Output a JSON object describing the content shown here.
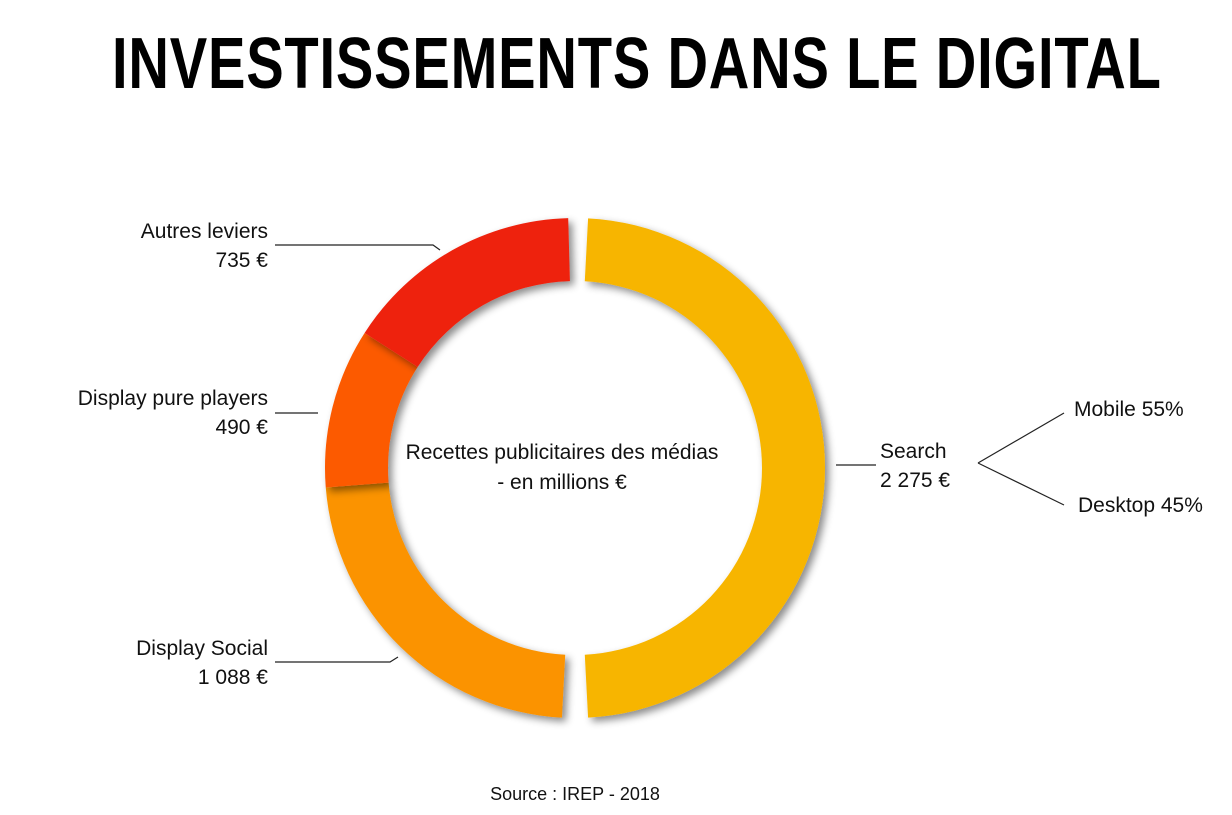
{
  "title": "INVESTISSEMENTS DANS LE DIGITAL",
  "center_label": "Recettes publicitaires des médias - en millions €",
  "source": "Source : IREP - 2018",
  "chart_data": {
    "type": "pie",
    "title": "INVESTISSEMENTS DANS LE DIGITAL",
    "subtitle": "Recettes publicitaires des médias - en millions €",
    "unit": "millions €",
    "categories": [
      "Search",
      "Display Social",
      "Display pure players",
      "Autres leviers"
    ],
    "values": [
      2275,
      1088,
      490,
      735
    ],
    "value_labels": [
      "2 275 €",
      "1 088 €",
      "490 €",
      "735 €"
    ],
    "colors": [
      "#f7b500",
      "#fb9300",
      "#fc5a05",
      "#ee2210"
    ],
    "breakdown": {
      "parent": "Search",
      "items": [
        {
          "label": "Mobile 55%",
          "value": 55
        },
        {
          "label": "Desktop 45%",
          "value": 45
        }
      ]
    }
  }
}
